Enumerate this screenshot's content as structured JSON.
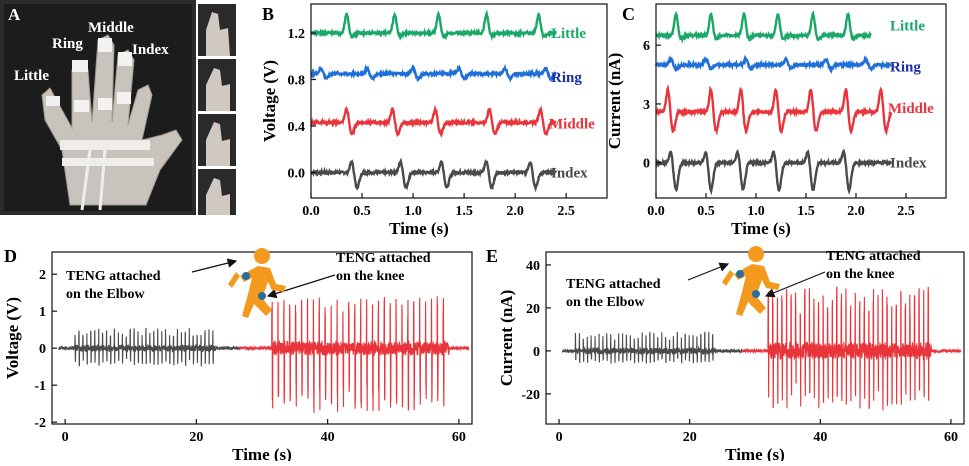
{
  "panel_labels": {
    "A": "A",
    "B": "B",
    "C": "C",
    "D": "D",
    "E": "E"
  },
  "photo": {
    "label_little": "Little",
    "label_ring": "Ring",
    "label_middle": "Middle",
    "label_index": "Index"
  },
  "colors": {
    "black": "#4a4a4a",
    "red": "#e8343a",
    "blue": "#1f6fd8",
    "green": "#1aa868",
    "label_blue": "#1b2ea8",
    "label_red": "#e8343a",
    "label_green": "#1aa868"
  },
  "chart_data": [
    {
      "id": "B",
      "type": "line",
      "xlabel": "Time (s)",
      "ylabel": "Voltage (V)",
      "xlim": [
        0,
        2.9
      ],
      "ylim": [
        -0.22,
        1.45
      ],
      "xticks": [
        "0.0",
        "0.5",
        "1.0",
        "1.5",
        "2.0",
        "2.5"
      ],
      "xtick_values": [
        0,
        0.5,
        1,
        1.5,
        2,
        2.5
      ],
      "yticks": [
        "0.0",
        "0.4",
        "0.8",
        "1.2"
      ],
      "ytick_values": [
        0,
        0.4,
        0.8,
        1.2
      ],
      "series": [
        {
          "name": "Index",
          "color": "black",
          "baseline": 0.0,
          "peaks": [
            0.4,
            0.88,
            1.28,
            1.72,
            2.15
          ],
          "amp": 0.1,
          "neg": -0.13,
          "t_end": 2.4
        },
        {
          "name": "Middle",
          "color": "red",
          "baseline": 0.43,
          "peaks": [
            0.35,
            0.8,
            1.22,
            1.75,
            2.25
          ],
          "amp": 0.12,
          "neg": -0.1,
          "t_end": 2.4
        },
        {
          "name": "Ring",
          "color": "blue",
          "baseline": 0.85,
          "peaks": [
            0.1,
            0.55,
            1.0,
            1.45,
            1.9,
            2.3
          ],
          "amp": 0.05,
          "neg": -0.04,
          "t_end": 2.4
        },
        {
          "name": "Little",
          "color": "green",
          "baseline": 1.2,
          "peaks": [
            0.35,
            0.82,
            1.25,
            1.72,
            2.23
          ],
          "amp": 0.16,
          "neg": -0.03,
          "t_end": 2.4
        }
      ],
      "labels": [
        {
          "text": "Little",
          "color": "label_green",
          "y": 1.2
        },
        {
          "text": "Ring",
          "color": "label_blue",
          "y": 0.82
        },
        {
          "text": "Middle",
          "color": "label_red",
          "y": 0.42
        },
        {
          "text": "Index",
          "color": "black",
          "y": 0.0
        }
      ]
    },
    {
      "id": "C",
      "type": "line",
      "xlabel": "Time (s)",
      "ylabel": "Current (nA)",
      "xlim": [
        0,
        2.9
      ],
      "ylim": [
        -1.8,
        8.1
      ],
      "xticks": [
        "0.0",
        "0.5",
        "1.0",
        "1.5",
        "2.0",
        "2.5"
      ],
      "xtick_values": [
        0,
        0.5,
        1,
        1.5,
        2,
        2.5
      ],
      "yticks": [
        "0",
        "3",
        "6"
      ],
      "ytick_values": [
        0,
        3,
        6
      ],
      "series": [
        {
          "name": "Index",
          "color": "black",
          "baseline": 0.0,
          "peaks": [
            0.15,
            0.5,
            0.82,
            1.18,
            1.52,
            1.88
          ],
          "amp": 0.6,
          "neg": -1.4,
          "t_end": 2.35
        },
        {
          "name": "Middle",
          "color": "red",
          "baseline": 2.6,
          "peaks": [
            0.12,
            0.55,
            0.85,
            1.2,
            1.55,
            1.9,
            2.25
          ],
          "amp": 1.2,
          "neg": -1.0,
          "t_end": 2.35
        },
        {
          "name": "Ring",
          "color": "blue",
          "baseline": 5.0,
          "peaks": [
            0.15,
            0.5,
            0.9,
            1.3,
            1.7,
            2.1
          ],
          "amp": 0.3,
          "neg": -0.2,
          "t_end": 2.35
        },
        {
          "name": "Little",
          "color": "green",
          "baseline": 6.5,
          "peaks": [
            0.2,
            0.55,
            0.88,
            1.22,
            1.57,
            1.92
          ],
          "amp": 1.1,
          "neg": -0.2,
          "t_end": 2.15
        }
      ],
      "labels": [
        {
          "text": "Little",
          "color": "label_green",
          "y": 7.0
        },
        {
          "text": "Ring",
          "color": "label_blue",
          "y": 4.9
        },
        {
          "text": "Middle",
          "color": "label_red",
          "y": 2.8
        },
        {
          "text": "Index",
          "color": "black",
          "y": 0.0
        }
      ]
    },
    {
      "id": "D",
      "type": "line",
      "xlabel": "Time (s)",
      "ylabel": "Voltage (V)",
      "xlim": [
        -2,
        62
      ],
      "ylim": [
        -2.05,
        2.6
      ],
      "xticks": [
        "0",
        "20",
        "40",
        "60"
      ],
      "xtick_values": [
        0,
        20,
        40,
        60
      ],
      "yticks": [
        "-2",
        "-1",
        "0",
        "1",
        "2"
      ],
      "ytick_values": [
        -2,
        -1,
        0,
        1,
        2
      ],
      "series": [
        {
          "name": "TENG attached on the Elbow",
          "color": "black",
          "t_start": -1,
          "t_end": 26.5,
          "burst_start": 1.5,
          "burst_end": 23,
          "period": 0.6,
          "pos": 0.55,
          "neg": -0.5
        },
        {
          "name": "TENG attached on the knee",
          "color": "red",
          "t_start": 26.5,
          "t_end": 61.5,
          "burst_start": 31.5,
          "burst_end": 58.5,
          "period": 0.9,
          "pos": 1.4,
          "neg": -1.75
        }
      ],
      "annotations": [
        "TENG attached\non the Elbow",
        "TENG attached\non the knee"
      ]
    },
    {
      "id": "E",
      "type": "line",
      "xlabel": "Time (s)",
      "ylabel": "Current (nA)",
      "xlim": [
        -2,
        62
      ],
      "ylim": [
        -34,
        46
      ],
      "xticks": [
        "0",
        "20",
        "40",
        "60"
      ],
      "xtick_values": [
        0,
        20,
        40,
        60
      ],
      "yticks": [
        "-20",
        "0",
        "20",
        "40"
      ],
      "ytick_values": [
        -20,
        0,
        20,
        40
      ],
      "series": [
        {
          "name": "TENG attached on the Elbow",
          "color": "black",
          "t_start": 0.5,
          "t_end": 28,
          "burst_start": 2.5,
          "burst_end": 24,
          "period": 0.6,
          "pos": 9,
          "neg": -6
        },
        {
          "name": "TENG attached on the knee",
          "color": "red",
          "t_start": 28,
          "t_end": 61.5,
          "burst_start": 32,
          "burst_end": 57,
          "period": 0.7,
          "pos": 30,
          "neg": -28
        }
      ],
      "annotations": [
        "TENG attached\non the Elbow",
        "TENG attached\non the knee"
      ]
    }
  ],
  "annot": {
    "d_left_1": "TENG   attached",
    "d_left_2": "on the Elbow",
    "d_right_1": "TENG   attached",
    "d_right_2": "on the knee",
    "e_left_1": "TENG   attached",
    "e_left_2": "on the Elbow",
    "e_right_1": "TENG   attached",
    "e_right_2": "on the knee"
  }
}
